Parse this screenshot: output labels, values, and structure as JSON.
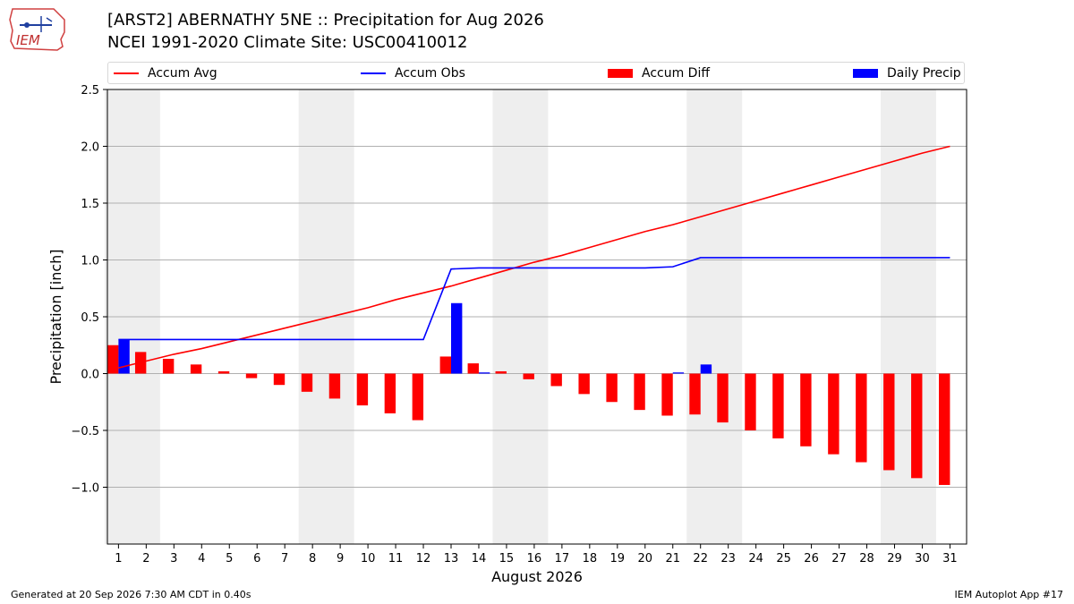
{
  "header": {
    "logo_text": "IEM",
    "title_line1": "[ARST2] ABERNATHY 5NE :: Precipitation for Aug 2026",
    "title_line2": "NCEI 1991-2020 Climate Site: USC00410012"
  },
  "footer": {
    "left": "Generated at 20 Sep 2026 7:30 AM CDT in 0.40s",
    "right": "IEM Autoplot App #17"
  },
  "colors": {
    "avg": "#ff0000",
    "obs": "#0000ff",
    "diff": "#ff0000",
    "daily": "#0000ff",
    "weekend_shade": "#eeeeee",
    "grid": "#b0b0b0"
  },
  "chart_data": {
    "type": "bar",
    "xlabel": "August 2026",
    "ylabel": "Precipitation [inch]",
    "ylim": [
      -1.5,
      2.5
    ],
    "yticks": [
      -1.0,
      -0.5,
      0.0,
      0.5,
      1.0,
      1.5,
      2.0,
      2.5
    ],
    "ytick_labels": [
      "−1.0",
      "−0.5",
      "0.0",
      "0.5",
      "1.0",
      "1.5",
      "2.0",
      "2.5"
    ],
    "x": [
      1,
      2,
      3,
      4,
      5,
      6,
      7,
      8,
      9,
      10,
      11,
      12,
      13,
      14,
      15,
      16,
      17,
      18,
      19,
      20,
      21,
      22,
      23,
      24,
      25,
      26,
      27,
      28,
      29,
      30,
      31
    ],
    "grid": "horizontal",
    "legend_position": "top",
    "shaded_weekend_spans": [
      [
        1,
        2
      ],
      [
        8,
        9
      ],
      [
        15,
        16
      ],
      [
        22,
        23
      ],
      [
        29,
        30
      ]
    ],
    "series": [
      {
        "name": "Accum Avg",
        "kind": "line",
        "values": [
          0.05,
          0.11,
          0.17,
          0.22,
          0.28,
          0.34,
          0.4,
          0.46,
          0.52,
          0.58,
          0.65,
          0.71,
          0.77,
          0.84,
          0.91,
          0.98,
          1.04,
          1.11,
          1.18,
          1.25,
          1.31,
          1.38,
          1.45,
          1.52,
          1.59,
          1.66,
          1.73,
          1.8,
          1.87,
          1.94,
          2.0
        ]
      },
      {
        "name": "Accum Obs",
        "kind": "line",
        "values": [
          0.3,
          0.3,
          0.3,
          0.3,
          0.3,
          0.3,
          0.3,
          0.3,
          0.3,
          0.3,
          0.3,
          0.3,
          0.92,
          0.93,
          0.93,
          0.93,
          0.93,
          0.93,
          0.93,
          0.93,
          0.94,
          1.02,
          1.02,
          1.02,
          1.02,
          1.02,
          1.02,
          1.02,
          1.02,
          1.02,
          1.02
        ]
      },
      {
        "name": "Accum Diff",
        "kind": "bar",
        "values": [
          0.25,
          0.19,
          0.13,
          0.08,
          0.02,
          -0.04,
          -0.1,
          -0.16,
          -0.22,
          -0.28,
          -0.35,
          -0.41,
          0.15,
          0.09,
          0.02,
          -0.05,
          -0.11,
          -0.18,
          -0.25,
          -0.32,
          -0.37,
          -0.36,
          -0.43,
          -0.5,
          -0.57,
          -0.64,
          -0.71,
          -0.78,
          -0.85,
          -0.92,
          -0.98
        ]
      },
      {
        "name": "Daily Precip",
        "kind": "bar",
        "values": [
          0.3,
          0,
          0,
          0,
          0,
          0,
          0,
          0,
          0,
          0,
          0,
          0,
          0.62,
          0.01,
          0,
          0,
          0,
          0,
          0,
          0,
          0.01,
          0.08,
          0,
          0,
          0,
          0,
          0,
          0,
          0,
          0,
          0
        ]
      }
    ]
  }
}
